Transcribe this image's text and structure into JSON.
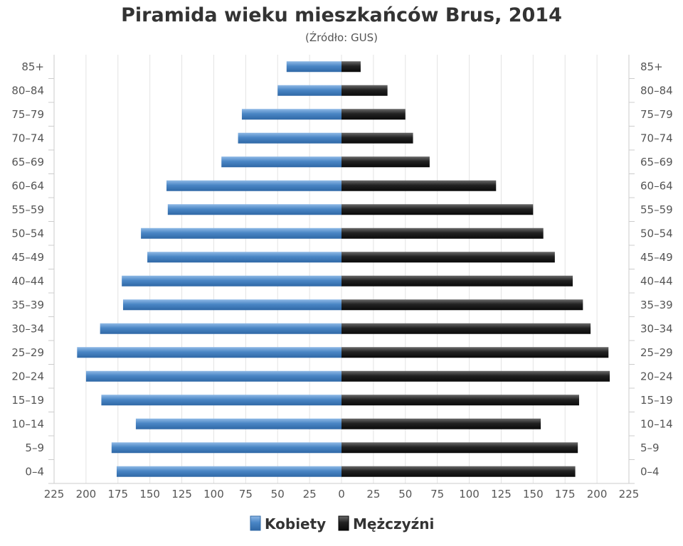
{
  "chart_data": {
    "type": "bar",
    "orientation": "horizontal",
    "title": "Piramida wieku mieszkańców Brus, 2014",
    "subtitle": "(Źródło: GUS)",
    "categories": [
      "0–4",
      "5–9",
      "10–14",
      "15–19",
      "20–24",
      "25–29",
      "30–34",
      "35–39",
      "40–44",
      "45–49",
      "50–54",
      "55–59",
      "60–64",
      "65–69",
      "70–74",
      "75–79",
      "80–84",
      "85+"
    ],
    "x_ticks": [
      "225",
      "200",
      "175",
      "150",
      "125",
      "100",
      "75",
      "50",
      "25",
      "0",
      "25",
      "50",
      "75",
      "100",
      "125",
      "150",
      "175",
      "200",
      "225"
    ],
    "xlim": [
      -225,
      225
    ],
    "grid": true,
    "legend_position": "bottom-center",
    "series": [
      {
        "name": "Kobiety",
        "side": "left",
        "color": "#4a86c5",
        "values": [
          176,
          180,
          161,
          188,
          200,
          207,
          189,
          171,
          172,
          152,
          157,
          136,
          137,
          94,
          81,
          78,
          50,
          43
        ]
      },
      {
        "name": "Mężczyźni",
        "side": "right",
        "color": "#222222",
        "values": [
          183,
          185,
          156,
          186,
          210,
          209,
          195,
          189,
          181,
          167,
          158,
          150,
          121,
          69,
          56,
          50,
          36,
          15
        ]
      }
    ]
  }
}
